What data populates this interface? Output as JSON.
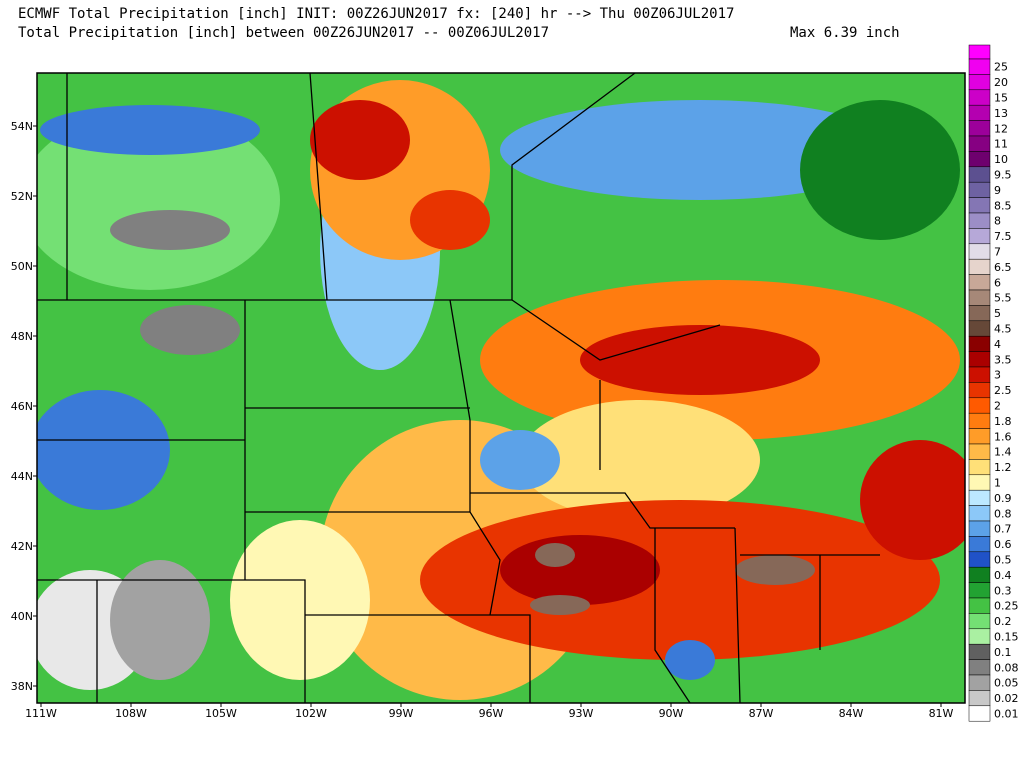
{
  "header": {
    "line1": "ECMWF Total Precipitation [inch] INIT: 00Z26JUN2017 fx: [240] hr --> Thu 00Z06JUL2017",
    "line2": "Total Precipitation [inch] between 00Z26JUN2017 -- 00Z06JUL2017",
    "max": "Max 6.39 inch"
  },
  "latitudes": [
    "54N",
    "52N",
    "50N",
    "48N",
    "46N",
    "44N",
    "42N",
    "40N",
    "38N"
  ],
  "longitudes": [
    "111W",
    "108W",
    "105W",
    "102W",
    "99W",
    "96W",
    "93W",
    "90W",
    "87W",
    "84W",
    "81W"
  ],
  "colorbar": [
    {
      "label": "25",
      "color": "#f000f0"
    },
    {
      "label": "20",
      "color": "#e000e0"
    },
    {
      "label": "15",
      "color": "#cc00c8"
    },
    {
      "label": "13",
      "color": "#b400b0"
    },
    {
      "label": "12",
      "color": "#9c009a"
    },
    {
      "label": "11",
      "color": "#860082"
    },
    {
      "label": "10",
      "color": "#6e006e"
    },
    {
      "label": "9.5",
      "color": "#5c5090"
    },
    {
      "label": "9",
      "color": "#6e62a2"
    },
    {
      "label": "8.5",
      "color": "#8476b4"
    },
    {
      "label": "8",
      "color": "#9c8ec6"
    },
    {
      "label": "7.5",
      "color": "#b6a8d8"
    },
    {
      "label": "7",
      "color": "#e2dce8"
    },
    {
      "label": "6.5",
      "color": "#e6d4cc"
    },
    {
      "label": "6",
      "color": "#c8a898"
    },
    {
      "label": "5.5",
      "color": "#a68878"
    },
    {
      "label": "5",
      "color": "#866858"
    },
    {
      "label": "4.5",
      "color": "#664838"
    },
    {
      "label": "4",
      "color": "#8a0000"
    },
    {
      "label": "3.5",
      "color": "#aa0000"
    },
    {
      "label": "3",
      "color": "#cc1000"
    },
    {
      "label": "2.5",
      "color": "#e83400"
    },
    {
      "label": "2",
      "color": "#ff5a00"
    },
    {
      "label": "1.8",
      "color": "#ff7c10"
    },
    {
      "label": "1.6",
      "color": "#ff9c28"
    },
    {
      "label": "1.4",
      "color": "#ffba48"
    },
    {
      "label": "1.2",
      "color": "#ffe078"
    },
    {
      "label": "1",
      "color": "#fff8b4"
    },
    {
      "label": "0.9",
      "color": "#bce8ff"
    },
    {
      "label": "0.8",
      "color": "#8cc8f8"
    },
    {
      "label": "0.7",
      "color": "#5ca2e8"
    },
    {
      "label": "0.6",
      "color": "#3a7ad8"
    },
    {
      "label": "0.5",
      "color": "#2052c8"
    },
    {
      "label": "0.4",
      "color": "#108020"
    },
    {
      "label": "0.3",
      "color": "#22a232"
    },
    {
      "label": "0.25",
      "color": "#44c244"
    },
    {
      "label": "0.2",
      "color": "#74e074"
    },
    {
      "label": "0.15",
      "color": "#aaf0a2"
    },
    {
      "label": "0.1",
      "color": "#606060"
    },
    {
      "label": "0.08",
      "color": "#808080"
    },
    {
      "label": "0.05",
      "color": "#a2a2a2"
    },
    {
      "label": "0.02",
      "color": "#c8c8c8"
    },
    {
      "label": "0.01",
      "color": "#ffffff"
    }
  ]
}
